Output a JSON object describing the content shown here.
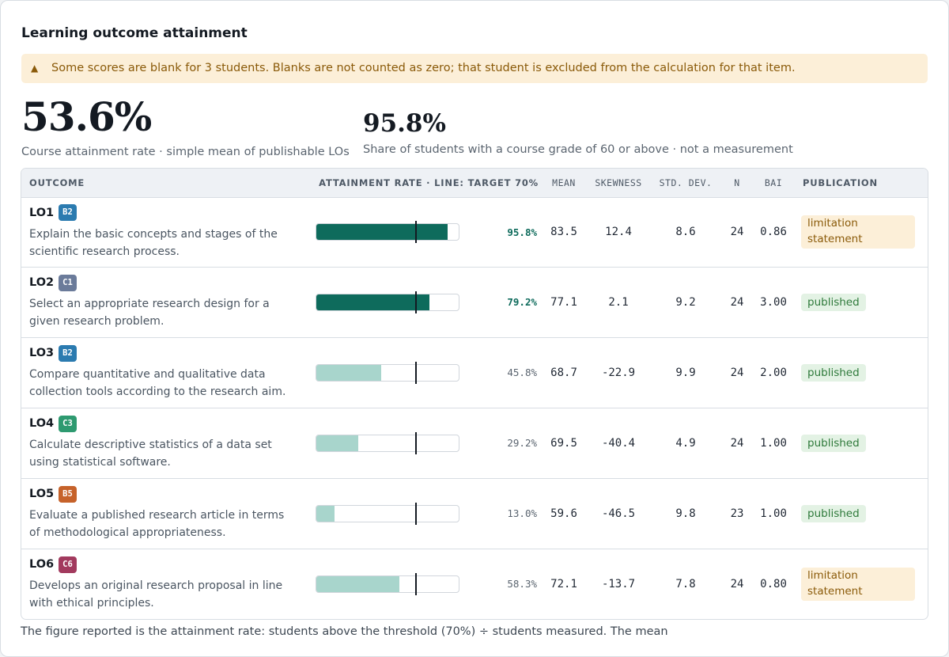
{
  "title": "Learning outcome attainment",
  "warning": {
    "icon": "warning-triangle-icon",
    "glyph": "▲",
    "text": "Some scores are blank for 3 students. Blanks are not counted as zero; that student is excluded from the calculation for that item."
  },
  "summary": {
    "course_rate_value": "53.6%",
    "course_rate_caption": "Course attainment rate · simple mean of publishable LOs",
    "share_value": "95.8%",
    "share_caption": "Share of students with a course grade of 60 or above · not a measurement"
  },
  "table": {
    "headers": {
      "outcome": "OUTCOME",
      "attainment": "ATTAINMENT RATE · LINE: TARGET 70%",
      "mean": "MEAN",
      "skewness": "SKEWNESS",
      "std_dev": "STD. DEV.",
      "n": "N",
      "bai": "BAI",
      "publication": "PUBLICATION"
    },
    "target": 70,
    "rows": [
      {
        "code": "LO1",
        "level": "B2",
        "level_color": "#2b7bb0",
        "desc": "Explain the basic concepts and stages of the scientific research process.",
        "rate": 95.8,
        "rate_label": "95.8%",
        "mean": "83.5",
        "skewness": "12.4",
        "std_dev": "8.6",
        "n": "24",
        "bai": "0.86",
        "publication": "limitation statement",
        "pub_type": "limitation"
      },
      {
        "code": "LO2",
        "level": "C1",
        "level_color": "#6b7b9a",
        "desc": "Select an appropriate research design for a given research problem.",
        "rate": 79.2,
        "rate_label": "79.2%",
        "mean": "77.1",
        "skewness": "2.1",
        "std_dev": "9.2",
        "n": "24",
        "bai": "3.00",
        "publication": "published",
        "pub_type": "published"
      },
      {
        "code": "LO3",
        "level": "B2",
        "level_color": "#2b7bb0",
        "desc": "Compare quantitative and qualitative data collection tools according to the research aim.",
        "rate": 45.8,
        "rate_label": "45.8%",
        "mean": "68.7",
        "skewness": "-22.9",
        "std_dev": "9.9",
        "n": "24",
        "bai": "2.00",
        "publication": "published",
        "pub_type": "published"
      },
      {
        "code": "LO4",
        "level": "C3",
        "level_color": "#2e9a70",
        "desc": "Calculate descriptive statistics of a data set using statistical software.",
        "rate": 29.2,
        "rate_label": "29.2%",
        "mean": "69.5",
        "skewness": "-40.4",
        "std_dev": "4.9",
        "n": "24",
        "bai": "1.00",
        "publication": "published",
        "pub_type": "published"
      },
      {
        "code": "LO5",
        "level": "B5",
        "level_color": "#c6622a",
        "desc": "Evaluate a published research article in terms of methodological appropriateness.",
        "rate": 13.0,
        "rate_label": "13.0%",
        "mean": "59.6",
        "skewness": "-46.5",
        "std_dev": "9.8",
        "n": "23",
        "bai": "1.00",
        "publication": "published",
        "pub_type": "published"
      },
      {
        "code": "LO6",
        "level": "C6",
        "level_color": "#a23a5e",
        "desc": "Develops an original research proposal in line with ethical principles.",
        "rate": 58.3,
        "rate_label": "58.3%",
        "mean": "72.1",
        "skewness": "-13.7",
        "std_dev": "7.8",
        "n": "24",
        "bai": "0.80",
        "publication": "limitation statement",
        "pub_type": "limitation"
      }
    ]
  },
  "footnote": "The figure reported is the attainment rate: students above the threshold (70%) ÷ students measured. The mean"
}
